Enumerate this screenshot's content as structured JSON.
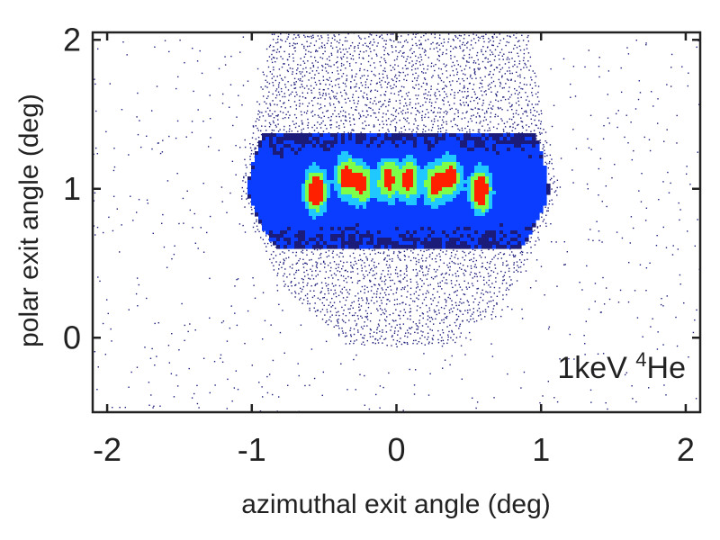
{
  "chart_data": {
    "type": "heatmap",
    "xlabel": "azimuthal exit angle (deg)",
    "ylabel": "polar exit angle (deg)",
    "xlim": [
      -2.1,
      2.1
    ],
    "ylim": [
      -0.5,
      2.05
    ],
    "x_ticks": [
      -2,
      -1,
      0,
      1,
      2
    ],
    "y_ticks": [
      0,
      1,
      2
    ],
    "x_tick_labels": [
      "-2",
      "-1",
      "0",
      "1",
      "2"
    ],
    "y_tick_labels": [
      "0",
      "1",
      "2"
    ],
    "annotation": {
      "prefix": "1keV ",
      "superscript": "4",
      "suffix": "He"
    },
    "grid": false,
    "colormap": [
      "#1b1b7a",
      "#0a3dff",
      "#1fc8ff",
      "#7dff4a",
      "#ff2000"
    ],
    "distribution": {
      "envelope_x_range": [
        -1.05,
        1.05
      ],
      "envelope_y_range": [
        0.1,
        2.05
      ],
      "intensity_band_y": 1.0,
      "hotspots": [
        {
          "x": -0.57,
          "y": 1.0,
          "intensity": 1.0
        },
        {
          "x": -0.36,
          "y": 1.1,
          "intensity": 0.75
        },
        {
          "x": -0.25,
          "y": 1.05,
          "intensity": 0.7
        },
        {
          "x": -0.07,
          "y": 1.08,
          "intensity": 0.78
        },
        {
          "x": 0.07,
          "y": 1.08,
          "intensity": 0.78
        },
        {
          "x": 0.25,
          "y": 1.05,
          "intensity": 0.7
        },
        {
          "x": 0.36,
          "y": 1.1,
          "intensity": 0.75
        },
        {
          "x": 0.57,
          "y": 1.0,
          "intensity": 1.0
        }
      ]
    }
  }
}
